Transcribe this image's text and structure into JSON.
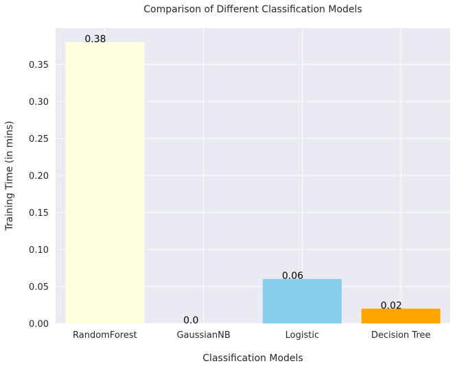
{
  "chart_data": {
    "type": "bar",
    "title": "Comparison of Different Classification Models",
    "xlabel": "Classification Models",
    "ylabel": "Training Time (in mins)",
    "categories": [
      "RandomForest",
      "GaussianNB",
      "Logistic",
      "Decision Tree"
    ],
    "values": [
      0.38,
      0.0,
      0.06,
      0.02
    ],
    "data_labels": [
      "0.38",
      "0.0",
      "0.06",
      "0.02"
    ],
    "colors": [
      "#ffffe0",
      "#1f77b4",
      "#87ceeb",
      "#ffa500"
    ],
    "ylim": [
      0,
      0.399
    ],
    "yticks": [
      0.0,
      0.05,
      0.1,
      0.15,
      0.2,
      0.25,
      0.3,
      0.35
    ],
    "ytick_labels": [
      "0.00",
      "0.05",
      "0.10",
      "0.15",
      "0.20",
      "0.25",
      "0.30",
      "0.35"
    ],
    "grid": true,
    "background": "#eaeaf2",
    "gridline_color": "#ffffff"
  }
}
